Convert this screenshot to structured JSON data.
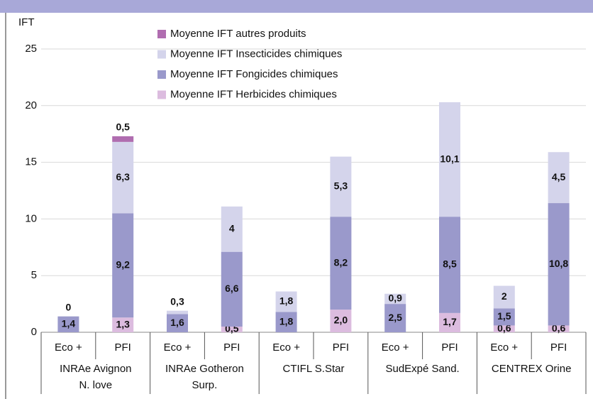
{
  "chart_data": {
    "type": "stacked-bar",
    "y_label": "IFT",
    "categories": [
      "Eco +",
      "PFI",
      "Eco +",
      "PFI",
      "Eco +",
      "PFI",
      "Eco +",
      "PFI",
      "Eco +",
      "PFI"
    ],
    "groups": [
      [
        "INRAe Avignon",
        "N. love"
      ],
      [
        "INRAe Gotheron",
        "Surp."
      ],
      [
        "CTIFL S.Star"
      ],
      [
        "SudExpé Sand."
      ],
      [
        "CENTREX Orine"
      ]
    ],
    "series": [
      {
        "name": "Moyenne IFT Herbicides chimiques",
        "color": "#dcbcdf",
        "values": [
          null,
          1.3,
          null,
          0.5,
          null,
          2.0,
          null,
          1.7,
          0.6,
          0.6
        ],
        "value_labels": [
          null,
          "1,3",
          null,
          "0,5",
          null,
          "2,0",
          null,
          "1,7",
          "0,6",
          "0,6"
        ]
      },
      {
        "name": "Moyenne IFT Fongicides chimiques",
        "color": "#9a99cb",
        "values": [
          1.4,
          9.2,
          1.6,
          6.6,
          1.8,
          8.2,
          2.5,
          8.5,
          1.5,
          10.8
        ],
        "value_labels": [
          "1,4",
          "9,2",
          "1,6",
          "6,6",
          "1,8",
          "8,2",
          "2,5",
          "8,5",
          "1,5",
          "10,8"
        ]
      },
      {
        "name": "Moyenne IFT Insecticides chimiques",
        "color": "#d4d4eb",
        "values": [
          null,
          6.3,
          0.3,
          4,
          1.8,
          5.3,
          0.9,
          10.1,
          2,
          4.5
        ],
        "value_labels": [
          null,
          "6,3",
          "0,3",
          "4",
          "1,8",
          "5,3",
          "0,9",
          "10,1",
          "2",
          "4,5"
        ]
      },
      {
        "name": "Moyenne IFT autres produits",
        "color": "#b06db0",
        "values": [
          0,
          0.5,
          null,
          null,
          null,
          null,
          null,
          null,
          null,
          null
        ],
        "value_labels": [
          "0",
          "0,5",
          null,
          null,
          null,
          null,
          null,
          null,
          null,
          null
        ]
      }
    ],
    "ylim": [
      0,
      25
    ],
    "yticks": [
      0,
      5,
      10,
      15,
      20,
      25
    ],
    "grid": true
  }
}
